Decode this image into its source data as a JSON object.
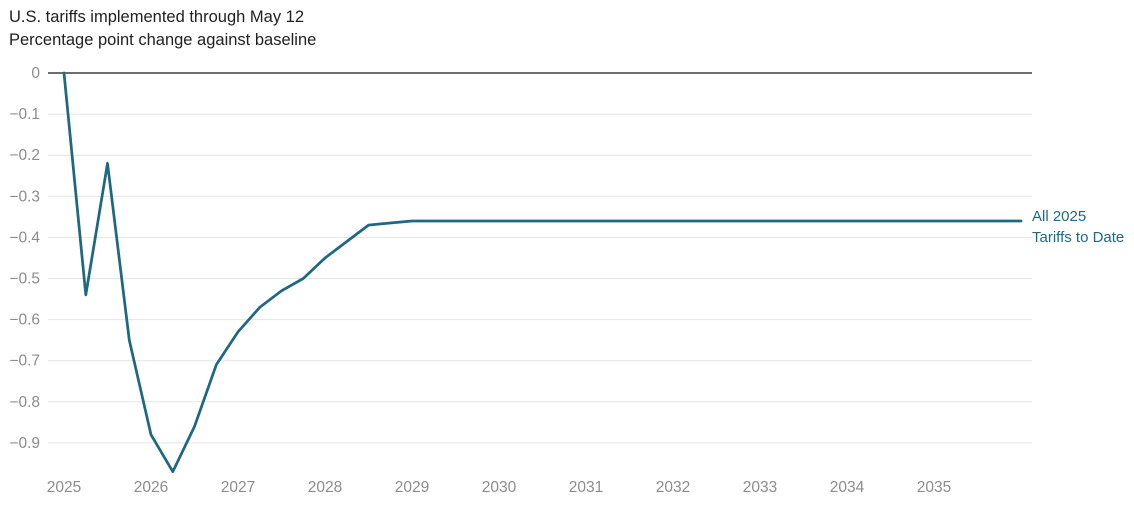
{
  "chart": {
    "title": "U.S. tariffs implemented through May 12",
    "subtitle": "Percentage point change against baseline",
    "legend": {
      "line1": "All 2025",
      "line2": "Tariffs to Date"
    }
  },
  "colors": {
    "line": "#1e6881",
    "grid": "#e4e4e4",
    "zero_axis": "#3d3d3d",
    "tick_text": "#8c8c8c",
    "title_text": "#212121",
    "bg": "#ffffff"
  },
  "chart_data": {
    "type": "line",
    "title": "U.S. tariffs implemented through May 12",
    "subtitle": "Percentage point change against baseline",
    "xlabel": "",
    "ylabel": "Percentage point change against baseline",
    "xlim": [
      2025,
      2036
    ],
    "ylim": [
      -0.98,
      0
    ],
    "grid": "horizontal",
    "legend_position": "right-of-line-end",
    "x_ticks": [
      2025,
      2026,
      2027,
      2028,
      2029,
      2030,
      2031,
      2032,
      2033,
      2034,
      2035
    ],
    "y_ticks": [
      0,
      -0.1,
      -0.2,
      -0.3,
      -0.4,
      -0.5,
      -0.6,
      -0.7,
      -0.8,
      -0.9
    ],
    "y_tick_labels": [
      "0",
      "−0.1",
      "−0.2",
      "−0.3",
      "−0.4",
      "−0.5",
      "−0.6",
      "−0.7",
      "−0.8",
      "−0.9"
    ],
    "series": [
      {
        "name": "All 2025 Tariffs to Date",
        "color": "#1e6881",
        "x": [
          2025.0,
          2025.25,
          2025.5,
          2025.75,
          2026.0,
          2026.25,
          2026.5,
          2026.75,
          2027.0,
          2027.25,
          2027.5,
          2027.75,
          2028.0,
          2028.25,
          2028.5,
          2028.75,
          2029.0,
          2029.25,
          2029.5,
          2029.75,
          2030.0,
          2030.25,
          2030.5,
          2030.75,
          2031.0,
          2031.25,
          2031.5,
          2031.75,
          2032.0,
          2032.25,
          2032.5,
          2032.75,
          2033.0,
          2033.25,
          2033.5,
          2033.75,
          2034.0,
          2034.25,
          2034.5,
          2034.75,
          2035.0,
          2035.25,
          2035.5,
          2035.75,
          2036.0
        ],
        "y": [
          0,
          -0.54,
          -0.22,
          -0.65,
          -0.88,
          -0.97,
          -0.86,
          -0.71,
          -0.63,
          -0.57,
          -0.53,
          -0.5,
          -0.45,
          -0.41,
          -0.37,
          -0.365,
          -0.36,
          -0.36,
          -0.36,
          -0.36,
          -0.36,
          -0.36,
          -0.36,
          -0.36,
          -0.36,
          -0.36,
          -0.36,
          -0.36,
          -0.36,
          -0.36,
          -0.36,
          -0.36,
          -0.36,
          -0.36,
          -0.36,
          -0.36,
          -0.36,
          -0.36,
          -0.36,
          -0.36,
          -0.36,
          -0.36,
          -0.36,
          -0.36,
          -0.36
        ]
      }
    ]
  }
}
